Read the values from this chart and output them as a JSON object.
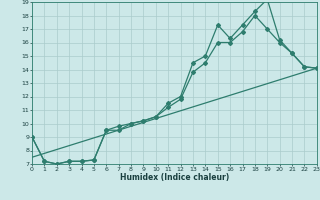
{
  "xlabel": "Humidex (Indice chaleur)",
  "xlim": [
    0,
    23
  ],
  "ylim": [
    7,
    19
  ],
  "yticks": [
    7,
    8,
    9,
    10,
    11,
    12,
    13,
    14,
    15,
    16,
    17,
    18,
    19
  ],
  "xticks": [
    0,
    1,
    2,
    3,
    4,
    5,
    6,
    7,
    8,
    9,
    10,
    11,
    12,
    13,
    14,
    15,
    16,
    17,
    18,
    19,
    20,
    21,
    22,
    23
  ],
  "color": "#2e7d6e",
  "bg_color": "#cce8e8",
  "grid_color": "#aacccc",
  "line1_x": [
    0,
    1,
    2,
    3,
    4,
    5,
    6,
    7,
    8,
    9,
    10,
    11,
    12,
    13,
    14,
    15,
    16,
    17,
    18,
    19,
    20,
    21,
    22,
    23
  ],
  "line1_y": [
    9.0,
    7.2,
    7.0,
    7.2,
    7.2,
    7.3,
    9.5,
    9.5,
    10.0,
    10.2,
    10.5,
    11.5,
    12.0,
    14.5,
    15.0,
    17.3,
    16.3,
    17.3,
    18.3,
    19.2,
    16.2,
    15.2,
    14.2,
    14.1
  ],
  "line2_x": [
    0,
    1,
    2,
    3,
    4,
    5,
    6,
    7,
    8,
    9,
    10,
    11,
    12,
    13,
    14,
    15,
    16,
    17,
    18,
    19,
    20,
    21,
    22,
    23
  ],
  "line2_y": [
    9.0,
    7.2,
    7.0,
    7.2,
    7.2,
    7.3,
    9.5,
    9.8,
    10.0,
    10.2,
    10.5,
    11.2,
    11.8,
    13.8,
    14.5,
    16.0,
    16.0,
    16.8,
    18.0,
    17.0,
    16.0,
    15.2,
    14.2,
    14.1
  ],
  "line3_x": [
    0,
    23
  ],
  "line3_y": [
    7.5,
    14.1
  ]
}
